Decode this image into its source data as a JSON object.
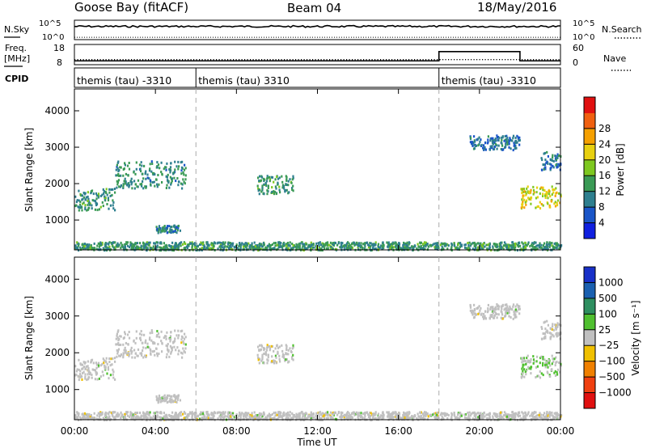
{
  "header": {
    "station": "Goose Bay (fitACF)",
    "beam": "Beam 04",
    "date": "18/May/2016"
  },
  "noise_panel": {
    "left_label": "N.Sky",
    "right_label": "N.Search",
    "left_ticks": [
      "10^5",
      "10^0"
    ],
    "right_ticks": [
      "10^5",
      "10^0"
    ]
  },
  "freq_panel": {
    "left_label_1": "Freq.",
    "left_label_2": "[MHz]",
    "right_label": "Nave",
    "left_ticks": [
      "18",
      "8"
    ],
    "right_ticks": [
      "60",
      "0"
    ]
  },
  "cpid_panel": {
    "label": "CPID",
    "segments": [
      {
        "start_hour": 0,
        "text": "themis (tau) -3310"
      },
      {
        "start_hour": 6,
        "text": "themis (tau) 3310"
      },
      {
        "start_hour": 18,
        "text": "themis (tau) -3310"
      }
    ]
  },
  "x_axis": {
    "title": "Time UT",
    "ticks": [
      "00:00",
      "04:00",
      "08:00",
      "12:00",
      "16:00",
      "20:00",
      "00:00"
    ],
    "tick_hours": [
      0,
      4,
      8,
      12,
      16,
      20,
      24
    ],
    "dashed_marker_hours": [
      6,
      18
    ]
  },
  "power_panel": {
    "ylabel": "Slant Range [km]",
    "yticks": [
      "1000",
      "2000",
      "3000",
      "4000"
    ],
    "colorbar_label": "Power [dB]",
    "colorbar_ticks": [
      "4",
      "8",
      "12",
      "16",
      "20",
      "24",
      "28"
    ],
    "colorbar_colors": [
      "#1020e0",
      "#1a55c8",
      "#2e7f8f",
      "#3a9a55",
      "#7ec820",
      "#e8d010",
      "#f5a000",
      "#f06010",
      "#e01010"
    ]
  },
  "velocity_panel": {
    "ylabel": "Slant Range [km]",
    "yticks": [
      "1000",
      "2000",
      "3000",
      "4000"
    ],
    "colorbar_label": "Velocity [m s⁻¹]",
    "colorbar_ticks": [
      "1000",
      "500",
      "100",
      "25",
      "−25",
      "−100",
      "−500",
      "−1000"
    ],
    "colorbar_colors": [
      "#1830c8",
      "#1a60b0",
      "#2e8f60",
      "#50c030",
      "#c0c0c0",
      "#f0c000",
      "#f08000",
      "#f04010",
      "#e01010"
    ]
  },
  "chart_data": {
    "type": "heatmap",
    "x_range_hours": [
      0,
      24
    ],
    "y_range_km": [
      180,
      4600
    ],
    "noise_sky_level_log10": 3.4,
    "noise_search_level_log10": 0.6,
    "frequency_mhz": [
      {
        "from_hour": 0,
        "to_hour": 18,
        "value": 10.5
      },
      {
        "from_hour": 18,
        "to_hour": 22,
        "value": 16.5
      },
      {
        "from_hour": 22,
        "to_hour": 24,
        "value": 10.5
      }
    ],
    "nave": 20,
    "scatter_regions": [
      {
        "t0": 0.0,
        "t1": 2.0,
        "r0": 1300,
        "r1": 1900,
        "power_db": 10,
        "velocity": 25
      },
      {
        "t0": 2.0,
        "t1": 5.5,
        "r0": 1900,
        "r1": 2650,
        "power_db": 9,
        "velocity": 25
      },
      {
        "t0": 4.0,
        "t1": 5.2,
        "r0": 680,
        "r1": 880,
        "power_db": 8,
        "velocity": 25
      },
      {
        "t0": 9.0,
        "t1": 10.8,
        "r0": 1750,
        "r1": 2250,
        "power_db": 10,
        "velocity": 25
      },
      {
        "t0": 19.5,
        "t1": 22.0,
        "r0": 2950,
        "r1": 3350,
        "power_db": 6,
        "velocity": 25
      },
      {
        "t0": 23.0,
        "t1": 24.0,
        "r0": 2400,
        "r1": 2900,
        "power_db": 6,
        "velocity": 25
      },
      {
        "t0": 22.0,
        "t1": 24.0,
        "r0": 1350,
        "r1": 1950,
        "power_db": 18,
        "velocity": 50
      },
      {
        "t0": 0.0,
        "t1": 24.0,
        "r0": 200,
        "r1": 420,
        "power_db": 10,
        "velocity": 25
      }
    ]
  }
}
